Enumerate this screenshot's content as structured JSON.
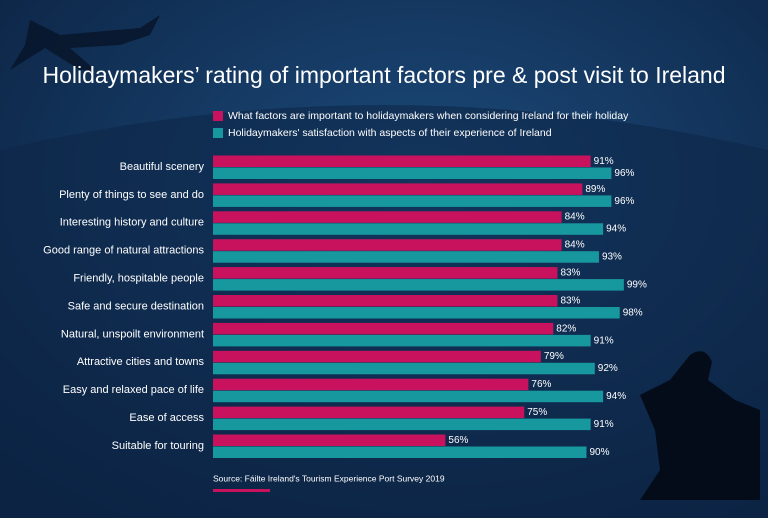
{
  "chart_data": {
    "type": "bar",
    "orientation": "horizontal",
    "title": "Holidaymakers’ rating of important factors pre & post visit to Ireland",
    "categories": [
      "Beautiful scenery",
      "Plenty of things to see and do",
      "Interesting history and culture",
      "Good range of natural attractions",
      "Friendly, hospitable people",
      "Safe and secure destination",
      "Natural, unspoilt environment",
      "Attractive cities and towns",
      "Easy and relaxed pace of life",
      "Ease of access",
      "Suitable for touring"
    ],
    "series": [
      {
        "name": "What factors are important to holidaymakers when considering Ireland for their holiday",
        "color": "#c8125e",
        "values": [
          91,
          89,
          84,
          84,
          83,
          83,
          82,
          79,
          76,
          75,
          56
        ],
        "value_labels": [
          "91%",
          "89%",
          "84%",
          "84%",
          "83%",
          "83%",
          "82%",
          "79%",
          "76%",
          "75%",
          "56%"
        ]
      },
      {
        "name": "Holidaymakers' satisfaction with aspects of their experience of Ireland",
        "color": "#17989e",
        "values": [
          96,
          96,
          94,
          93,
          99,
          98,
          91,
          92,
          94,
          91,
          90
        ],
        "value_labels": [
          "96%",
          "96%",
          "94%",
          "93%",
          "99%",
          "98%",
          "91%",
          "92%",
          "94%",
          "91%",
          "90%"
        ]
      }
    ],
    "xlim": [
      0,
      100
    ],
    "source": "Source: Fáilte Ireland's Tourism Experience Port Survey 2019"
  }
}
